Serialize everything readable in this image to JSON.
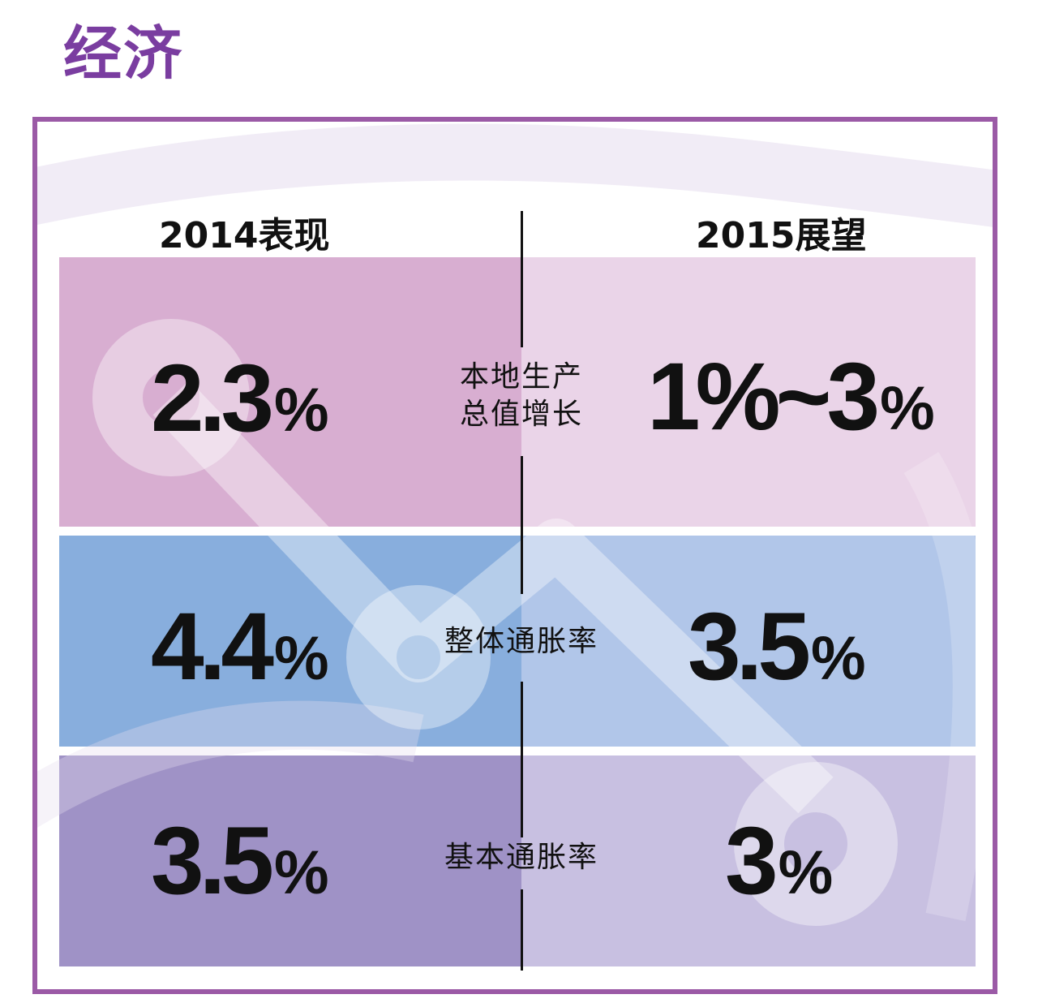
{
  "page_title": "经济",
  "headers": {
    "left": "2014表现",
    "right": "2015展望"
  },
  "rows": [
    {
      "label_line1": "本地生产",
      "label_line2": "总值增长",
      "value_2014": "2.3",
      "value_2014_unit": "%",
      "value_2015": "1%~3",
      "value_2015_unit": "%",
      "color_2014": "#d8aed1",
      "color_2015": "#ead4e8"
    },
    {
      "label_line1": "整体通胀率",
      "label_line2": "",
      "value_2014": "4.4",
      "value_2014_unit": "%",
      "value_2015": "3.5",
      "value_2015_unit": "%",
      "color_2014": "#88aedd",
      "color_2015": "#b1c6e9"
    },
    {
      "label_line1": "基本通胀率",
      "label_line2": "",
      "value_2014": "3.5",
      "value_2014_unit": "%",
      "value_2015": "3",
      "value_2015_unit": "%",
      "color_2014": "#9f92c6",
      "color_2015": "#c8c0e1"
    }
  ],
  "colors": {
    "title": "#7a3da0",
    "frame": "#9b5aa6"
  }
}
